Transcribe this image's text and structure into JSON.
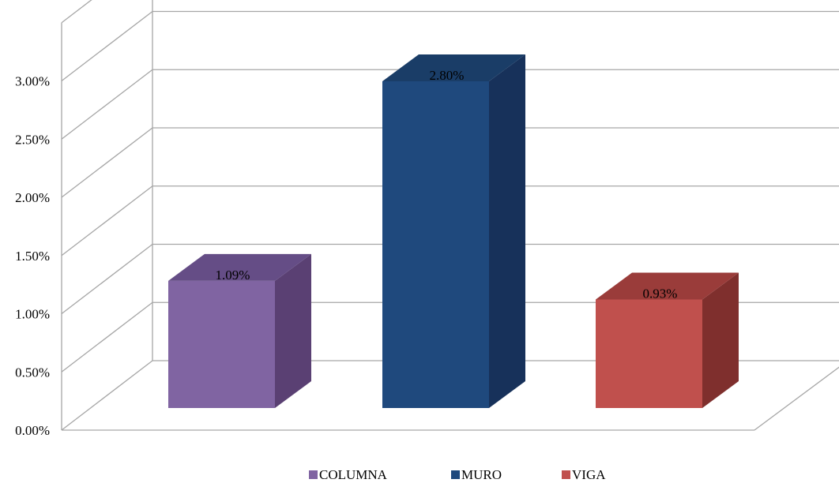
{
  "chart_data": {
    "type": "bar",
    "categories": [
      "COLUMNA",
      "MURO",
      "VIGA"
    ],
    "values": [
      1.09,
      2.8,
      0.93
    ],
    "data_labels": [
      "1.09%",
      "2.80%",
      "0.93%"
    ],
    "ylim": [
      0,
      3.0
    ],
    "ytick_values": [
      0,
      0.5,
      1.0,
      1.5,
      2.0,
      2.5,
      3.0
    ],
    "ytick_labels": [
      "0.00%",
      "0.50%",
      "1.00%",
      "1.50%",
      "2.00%",
      "2.50%",
      "3.00%"
    ],
    "grid": true,
    "three_d": true,
    "legend": {
      "position": "bottom",
      "entries": [
        "COLUMNA",
        "MURO",
        "VIGA"
      ]
    },
    "colors": [
      "#8064a2",
      "#1f497d",
      "#c0504d"
    ],
    "side_colors": [
      "#5a4073",
      "#17315a",
      "#7f2f2d"
    ],
    "top_colors": [
      "#654d86",
      "#1a3d67",
      "#9a3c3a"
    ]
  }
}
